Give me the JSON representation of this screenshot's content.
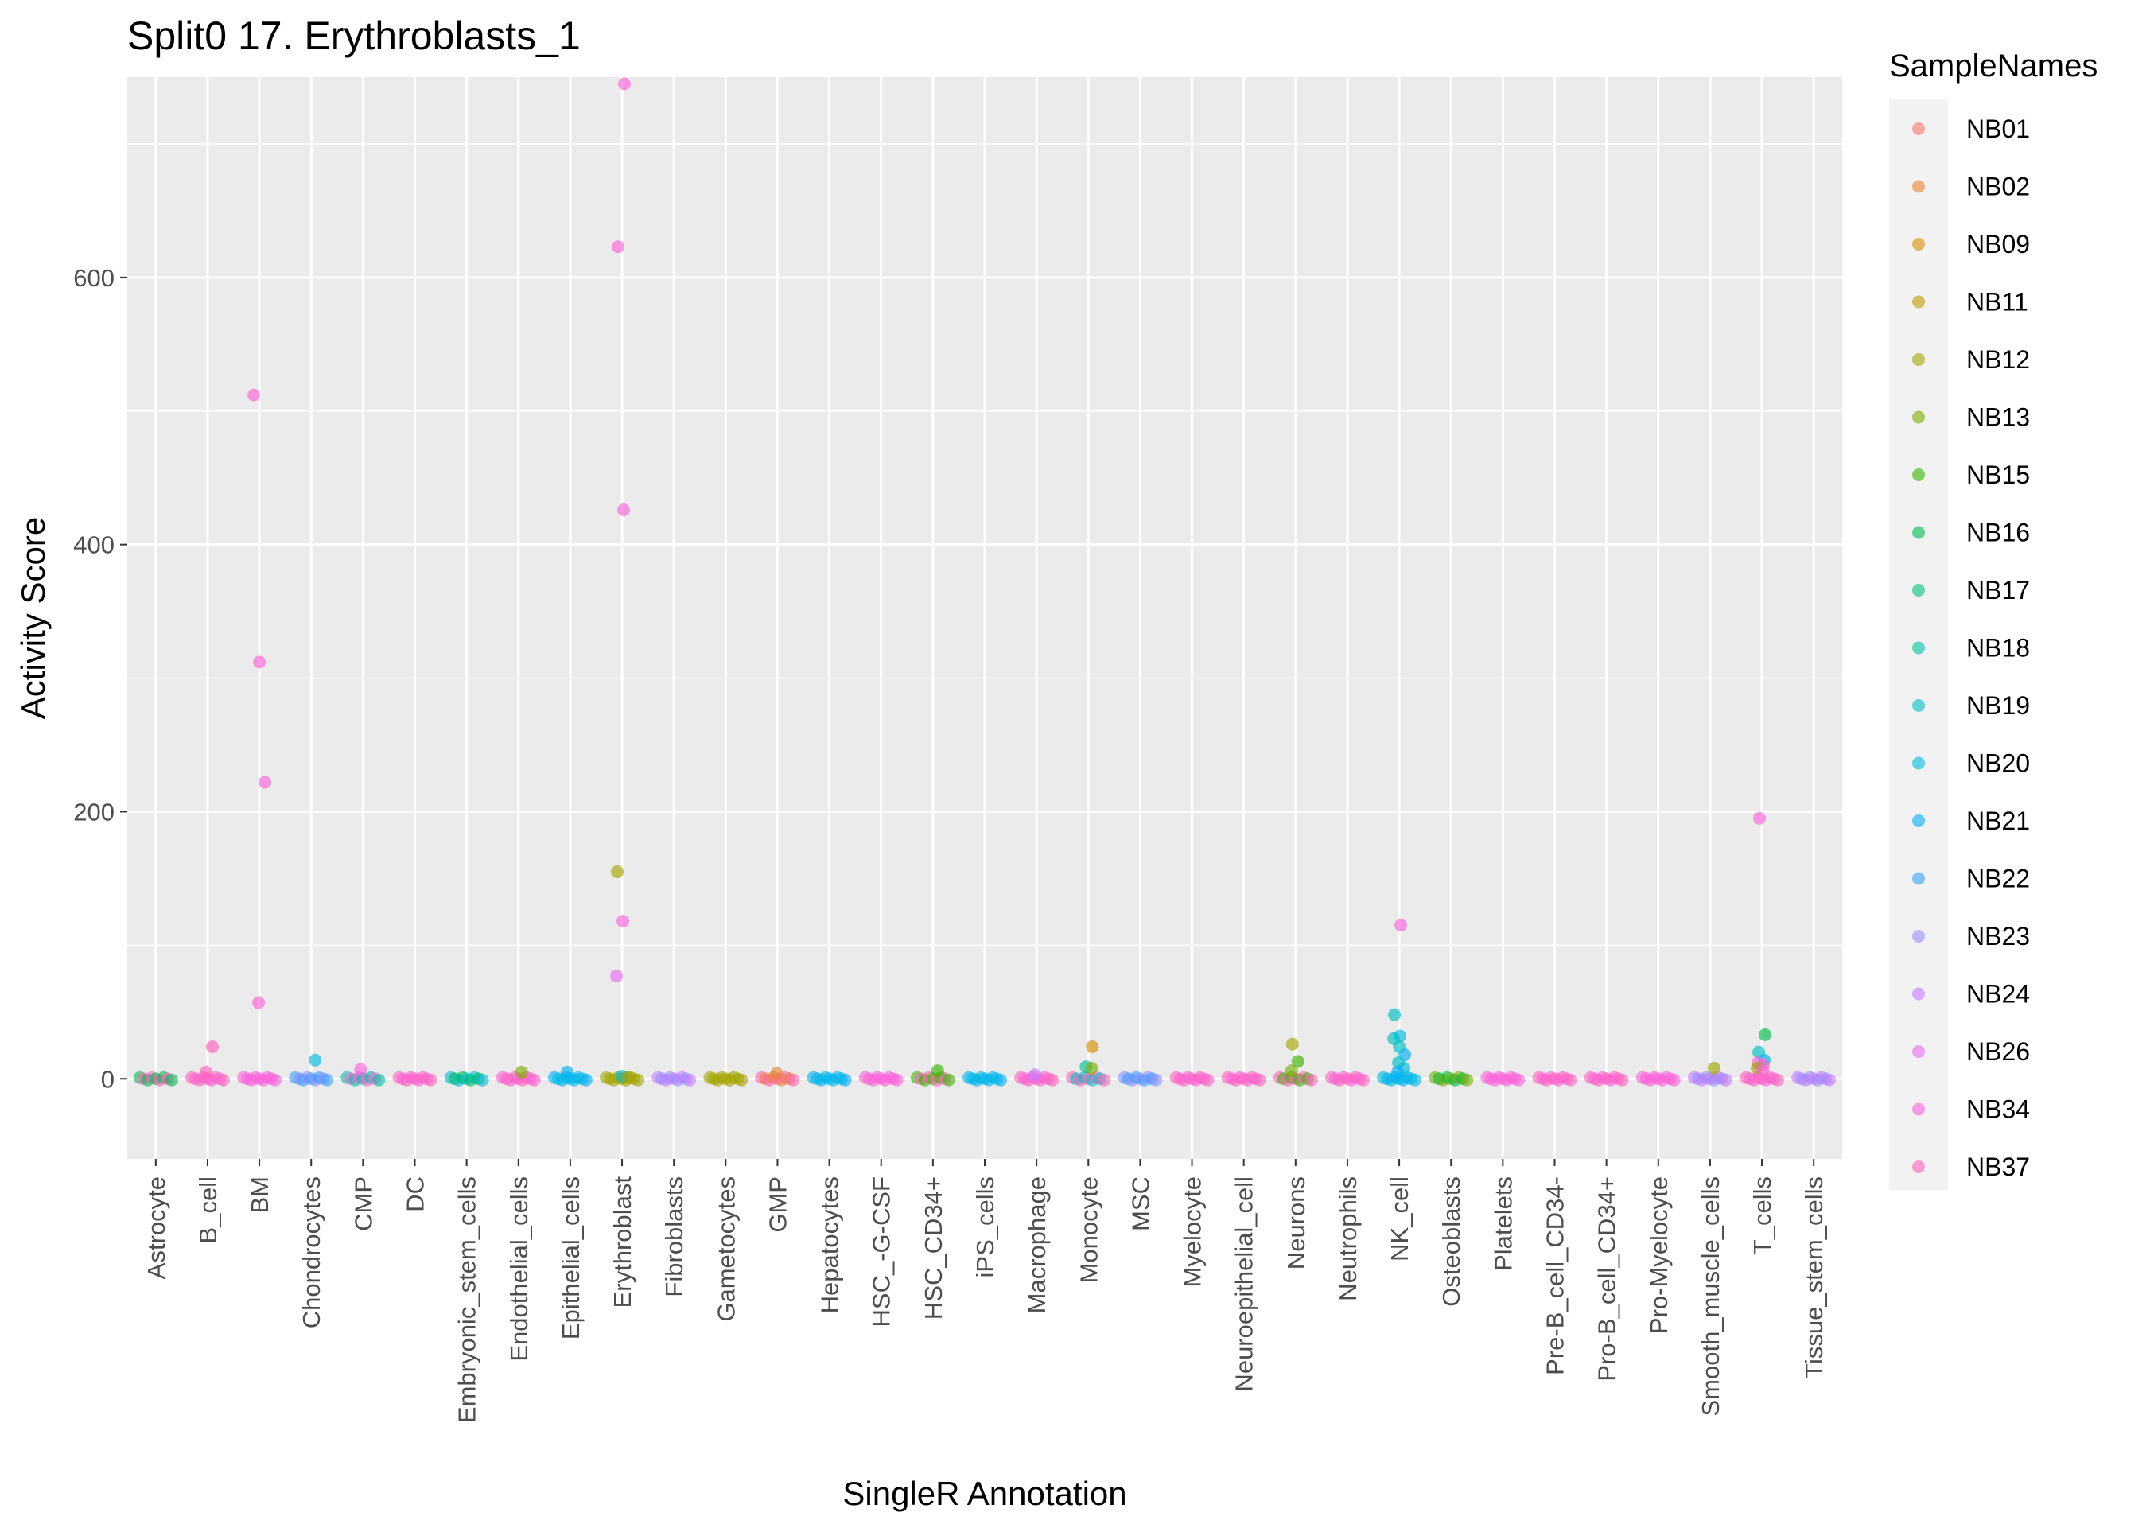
{
  "chart_data": {
    "type": "scatter",
    "title": "Split0 17. Erythroblasts_1",
    "xlabel": "SingleR Annotation",
    "ylabel": "Activity Score",
    "ylim": [
      -60,
      750
    ],
    "yticks": [
      0,
      200,
      400,
      600
    ],
    "grid": true,
    "legend_position": "right",
    "legend_title": "SampleNames",
    "categories": [
      "Astrocyte",
      "B_cell",
      "BM",
      "Chondrocytes",
      "CMP",
      "DC",
      "Embryonic_stem_cells",
      "Endothelial_cells",
      "Epithelial_cells",
      "Erythroblast",
      "Fibroblasts",
      "Gametocytes",
      "GMP",
      "Hepatocytes",
      "HSC_-G-CSF",
      "HSC_CD34+",
      "iPS_cells",
      "Macrophage",
      "Monocyte",
      "MSC",
      "Myelocyte",
      "Neuroepithelial_cell",
      "Neurons",
      "Neutrophils",
      "NK_cell",
      "Osteoblasts",
      "Platelets",
      "Pre-B_cell_CD34-",
      "Pro-B_cell_CD34+",
      "Pro-Myelocyte",
      "Smooth_muscle_cells",
      "T_cells",
      "Tissue_stem_cells"
    ],
    "series": [
      {
        "name": "NB01",
        "color": "#F8766D"
      },
      {
        "name": "NB02",
        "color": "#EA8331"
      },
      {
        "name": "NB09",
        "color": "#D89000"
      },
      {
        "name": "NB11",
        "color": "#C09B00"
      },
      {
        "name": "NB12",
        "color": "#A3A500"
      },
      {
        "name": "NB13",
        "color": "#7CAE00"
      },
      {
        "name": "NB15",
        "color": "#39B600"
      },
      {
        "name": "NB16",
        "color": "#00BB4E"
      },
      {
        "name": "NB17",
        "color": "#00BF7D"
      },
      {
        "name": "NB18",
        "color": "#00C1A3"
      },
      {
        "name": "NB19",
        "color": "#00BFC4"
      },
      {
        "name": "NB20",
        "color": "#00BAE0"
      },
      {
        "name": "NB21",
        "color": "#00B0F6"
      },
      {
        "name": "NB22",
        "color": "#35A2FF"
      },
      {
        "name": "NB23",
        "color": "#9590FF"
      },
      {
        "name": "NB24",
        "color": "#C77CFF"
      },
      {
        "name": "NB26",
        "color": "#E76BF3"
      },
      {
        "name": "NB34",
        "color": "#FA62DB"
      },
      {
        "name": "NB37",
        "color": "#FF62BC"
      }
    ],
    "points": [
      {
        "category": "BM",
        "sample": "NB34",
        "y": 512
      },
      {
        "category": "BM",
        "sample": "NB34",
        "y": 312
      },
      {
        "category": "BM",
        "sample": "NB34",
        "y": 222
      },
      {
        "category": "BM",
        "sample": "NB34",
        "y": 57
      },
      {
        "category": "B_cell",
        "sample": "NB37",
        "y": 24
      },
      {
        "category": "B_cell",
        "sample": "NB37",
        "y": 5
      },
      {
        "category": "Chondrocytes",
        "sample": "NB20",
        "y": 14
      },
      {
        "category": "CMP",
        "sample": "NB34",
        "y": 7
      },
      {
        "category": "Endothelial_cells",
        "sample": "NB13",
        "y": 5
      },
      {
        "category": "Epithelial_cells",
        "sample": "NB21",
        "y": 5
      },
      {
        "category": "Erythroblast",
        "sample": "NB34",
        "y": 745
      },
      {
        "category": "Erythroblast",
        "sample": "NB34",
        "y": 623
      },
      {
        "category": "Erythroblast",
        "sample": "NB34",
        "y": 426
      },
      {
        "category": "Erythroblast",
        "sample": "NB12",
        "y": 155
      },
      {
        "category": "Erythroblast",
        "sample": "NB34",
        "y": 118
      },
      {
        "category": "Erythroblast",
        "sample": "NB26",
        "y": 77
      },
      {
        "category": "Erythroblast",
        "sample": "NB20",
        "y": 2
      },
      {
        "category": "Erythroblast",
        "sample": "NB12",
        "y": 1
      },
      {
        "category": "GMP",
        "sample": "NB02",
        "y": 4
      },
      {
        "category": "HSC_CD34+",
        "sample": "NB15",
        "y": 6
      },
      {
        "category": "Macrophage",
        "sample": "NB24",
        "y": 3
      },
      {
        "category": "Monocyte",
        "sample": "NB09",
        "y": 24
      },
      {
        "category": "Monocyte",
        "sample": "NB18",
        "y": 9
      },
      {
        "category": "Monocyte",
        "sample": "NB13",
        "y": 8
      },
      {
        "category": "Neurons",
        "sample": "NB12",
        "y": 26
      },
      {
        "category": "Neurons",
        "sample": "NB15",
        "y": 13
      },
      {
        "category": "Neurons",
        "sample": "NB13",
        "y": 6
      },
      {
        "category": "NK_cell",
        "sample": "NB34",
        "y": 115
      },
      {
        "category": "NK_cell",
        "sample": "NB19",
        "y": 48
      },
      {
        "category": "NK_cell",
        "sample": "NB20",
        "y": 32
      },
      {
        "category": "NK_cell",
        "sample": "NB19",
        "y": 30
      },
      {
        "category": "NK_cell",
        "sample": "NB19",
        "y": 24
      },
      {
        "category": "NK_cell",
        "sample": "NB21",
        "y": 18
      },
      {
        "category": "NK_cell",
        "sample": "NB19",
        "y": 12
      },
      {
        "category": "NK_cell",
        "sample": "NB20",
        "y": 8
      },
      {
        "category": "NK_cell",
        "sample": "NB21",
        "y": 5
      },
      {
        "category": "Smooth_muscle_cells",
        "sample": "NB12",
        "y": 8
      },
      {
        "category": "T_cells",
        "sample": "NB34",
        "y": 195
      },
      {
        "category": "T_cells",
        "sample": "NB16",
        "y": 33
      },
      {
        "category": "T_cells",
        "sample": "NB19",
        "y": 20
      },
      {
        "category": "T_cells",
        "sample": "NB21",
        "y": 14
      },
      {
        "category": "T_cells",
        "sample": "NB34",
        "y": 12
      },
      {
        "category": "T_cells",
        "sample": "NB37",
        "y": 10
      },
      {
        "category": "T_cells",
        "sample": "NB12",
        "y": 8
      },
      {
        "category": "T_cells",
        "sample": "NB34",
        "y": 6
      }
    ],
    "zero_cluster_samples": {
      "Astrocyte": [
        "NB16",
        "NB37"
      ],
      "B_cell": [
        "NB37",
        "NB34"
      ],
      "BM": [
        "NB34"
      ],
      "Chondrocytes": [
        "NB22",
        "NB23"
      ],
      "CMP": [
        "NB18",
        "NB34"
      ],
      "DC": [
        "NB37",
        "NB34"
      ],
      "Embryonic_stem_cells": [
        "NB20",
        "NB16"
      ],
      "Endothelial_cells": [
        "NB34",
        "NB37"
      ],
      "Epithelial_cells": [
        "NB21",
        "NB20"
      ],
      "Erythroblast": [
        "NB12"
      ],
      "Fibroblasts": [
        "NB24",
        "NB23"
      ],
      "Gametocytes": [
        "NB12"
      ],
      "GMP": [
        "NB37",
        "NB02"
      ],
      "Hepatocytes": [
        "NB21",
        "NB20"
      ],
      "HSC_-G-CSF": [
        "NB34"
      ],
      "HSC_CD34+": [
        "NB15",
        "NB37"
      ],
      "iPS_cells": [
        "NB21",
        "NB20"
      ],
      "Macrophage": [
        "NB37",
        "NB34"
      ],
      "Monocyte": [
        "NB37",
        "NB19"
      ],
      "MSC": [
        "NB23",
        "NB22"
      ],
      "Myelocyte": [
        "NB37",
        "NB34"
      ],
      "Neuroepithelial_cell": [
        "NB37",
        "NB34"
      ],
      "Neurons": [
        "NB37",
        "NB15"
      ],
      "Neutrophils": [
        "NB37",
        "NB34"
      ],
      "NK_cell": [
        "NB20",
        "NB21"
      ],
      "Osteoblasts": [
        "NB13",
        "NB16"
      ],
      "Platelets": [
        "NB34"
      ],
      "Pre-B_cell_CD34-": [
        "NB37",
        "NB34"
      ],
      "Pro-B_cell_CD34+": [
        "NB37",
        "NB34"
      ],
      "Pro-Myelocyte": [
        "NB34"
      ],
      "Smooth_muscle_cells": [
        "NB24",
        "NB23"
      ],
      "T_cells": [
        "NB37",
        "NB34"
      ],
      "Tissue_stem_cells": [
        "NB24",
        "NB23"
      ]
    }
  }
}
